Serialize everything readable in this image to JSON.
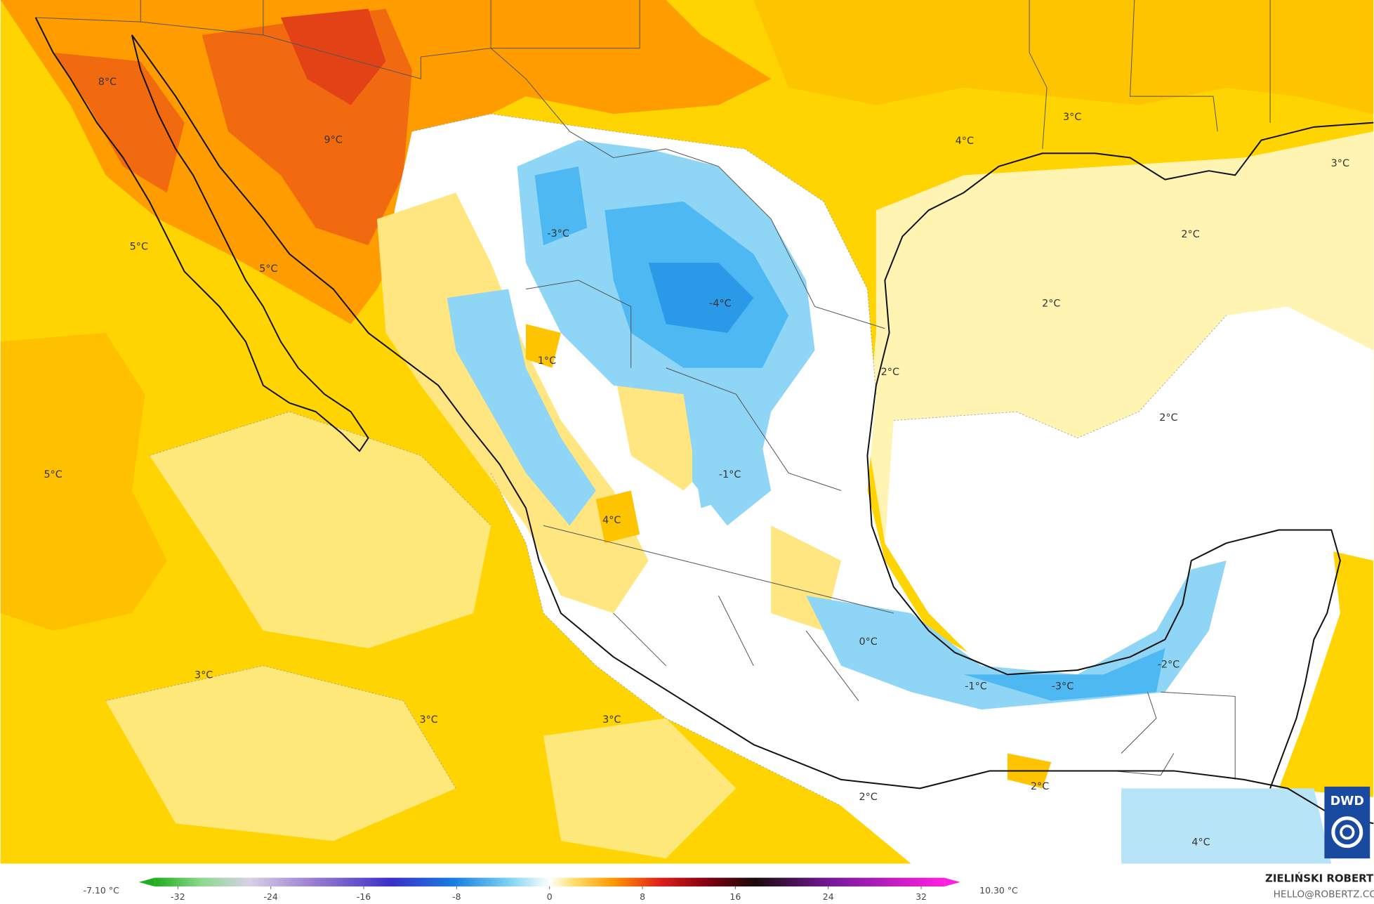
{
  "map": {
    "labels": [
      "8°C",
      "9°C",
      "5°C",
      "5°C",
      "5°C",
      "3°C",
      "3°C",
      "3°C",
      "-3°C",
      "-4°C",
      "1°C",
      "-1°C",
      "4°C",
      "0°C",
      "-1°C",
      "-3°C",
      "-2°C",
      "2°C",
      "2°C",
      "4°C",
      "4°C",
      "3°C",
      "3°C",
      "2°C",
      "2°C",
      "2°C",
      "2°C"
    ]
  },
  "colorbar": {
    "min_label": "-7.10 °C",
    "max_label": "10.30 °C",
    "lim": [
      -34,
      34
    ],
    "ticks": [
      -32,
      -24,
      -16,
      -8,
      0,
      8,
      16,
      24,
      32
    ]
  },
  "credits": {
    "author": "ZIELIŃSKI ROBERT",
    "contact": "HELLO@ROBERTZ.CO",
    "logo": "DWD"
  }
}
